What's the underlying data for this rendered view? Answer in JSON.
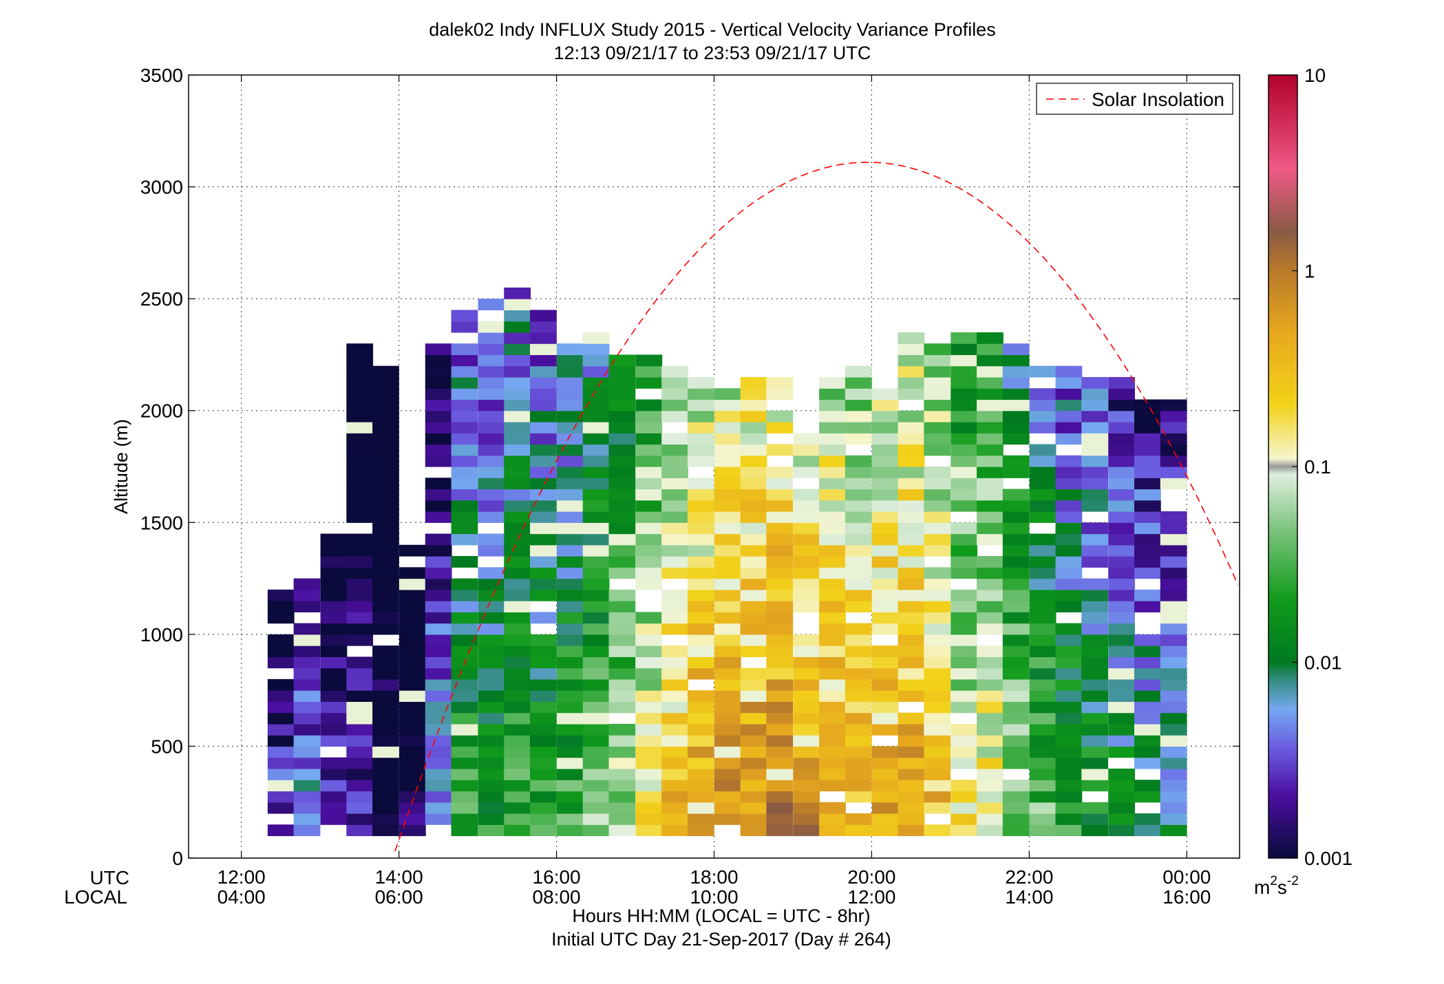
{
  "chart_data": {
    "type": "heatmap",
    "title": "dalek02 Indy INFLUX Study 2015 - Vertical Velocity Variance Profiles",
    "subtitle": "12:13 09/21/17 to 23:53 09/21/17  UTC",
    "ylabel": "Altitude (m)",
    "xlabel": "Hours HH:MM  (LOCAL = UTC - 8hr)",
    "xlabel2": "Initial UTC Day 21-Sep-2017 (Day # 264)",
    "x_row_labels": [
      "UTC",
      "LOCAL"
    ],
    "xlim": [
      11.33,
      24.67
    ],
    "ylim": [
      0,
      3500
    ],
    "grid": true,
    "yticks": [
      0,
      500,
      1000,
      1500,
      2000,
      2500,
      3000,
      3500
    ],
    "xticks": [
      12,
      14,
      16,
      18,
      20,
      22,
      24
    ],
    "xtick_labels_utc": [
      "12:00",
      "14:00",
      "16:00",
      "18:00",
      "20:00",
      "22:00",
      "00:00"
    ],
    "xtick_labels_local": [
      "04:00",
      "06:00",
      "08:00",
      "10:00",
      "12:00",
      "14:00",
      "16:00"
    ],
    "colorbar": {
      "scale": "log",
      "range": [
        0.001,
        10
      ],
      "ticks": [
        "0.001",
        "0.01",
        "0.1",
        "1",
        "10"
      ],
      "unit_base": "m",
      "unit_sup1": "2",
      "unit_mid": "s",
      "unit_sup2": "-2"
    },
    "cell": {
      "dt_hours": 0.3333,
      "dz_m": 50,
      "z_start_m": 100
    },
    "columns": [
      {
        "t": 12.5,
        "top": 1200,
        "level": -2.4
      },
      {
        "t": 12.83,
        "top": 1250,
        "level": -2.1
      },
      {
        "t": 13.17,
        "top": 1450,
        "level": -2.4
      },
      {
        "t": 13.5,
        "top": 2300,
        "level": -2.6
      },
      {
        "t": 13.83,
        "top": 2200,
        "level": -2.8
      },
      {
        "t": 14.17,
        "top": 1400,
        "level": -3.0
      },
      {
        "t": 14.5,
        "top": 2300,
        "level": -2.2
      },
      {
        "t": 14.83,
        "top": 2450,
        "level": -1.6
      },
      {
        "t": 15.17,
        "top": 2500,
        "level": -1.7
      },
      {
        "t": 15.5,
        "top": 2550,
        "level": -1.5
      },
      {
        "t": 15.83,
        "top": 2500,
        "level": -1.6
      },
      {
        "t": 16.17,
        "top": 2300,
        "level": -1.5
      },
      {
        "t": 16.5,
        "top": 2350,
        "level": -1.3
      },
      {
        "t": 16.83,
        "top": 2250,
        "level": -1.1
      },
      {
        "t": 17.17,
        "top": 2300,
        "level": -0.8
      },
      {
        "t": 17.5,
        "top": 2200,
        "level": -0.5
      },
      {
        "t": 17.83,
        "top": 2150,
        "level": -0.3
      },
      {
        "t": 18.17,
        "top": 2100,
        "level": -0.2
      },
      {
        "t": 18.5,
        "top": 2150,
        "level": -0.15
      },
      {
        "t": 18.83,
        "top": 2150,
        "level": -0.1
      },
      {
        "t": 19.17,
        "top": 1900,
        "level": -0.15
      },
      {
        "t": 19.5,
        "top": 2150,
        "level": -0.3
      },
      {
        "t": 19.83,
        "top": 2200,
        "level": -0.4
      },
      {
        "t": 20.17,
        "top": 2100,
        "level": -0.3
      },
      {
        "t": 20.5,
        "top": 2350,
        "level": -0.3
      },
      {
        "t": 20.83,
        "top": 2350,
        "level": -0.5
      },
      {
        "t": 21.17,
        "top": 2350,
        "level": -0.9
      },
      {
        "t": 21.5,
        "top": 2350,
        "level": -0.8
      },
      {
        "t": 21.83,
        "top": 2300,
        "level": -1.2
      },
      {
        "t": 22.17,
        "top": 2200,
        "level": -1.4
      },
      {
        "t": 22.5,
        "top": 2200,
        "level": -1.6
      },
      {
        "t": 22.83,
        "top": 2150,
        "level": -1.7
      },
      {
        "t": 23.17,
        "top": 2150,
        "level": -1.8
      },
      {
        "t": 23.5,
        "top": 2050,
        "level": -1.9
      },
      {
        "t": 23.83,
        "top": 2050,
        "level": -2.0
      }
    ],
    "series": [
      {
        "name": "Solar Insolation",
        "style": "dashed",
        "color": "#ff0000",
        "curve": [
          {
            "x": 13.95,
            "y": 30
          },
          {
            "x": 19.95,
            "y": 3110
          },
          {
            "x": 24.67,
            "y": 1050
          }
        ]
      }
    ]
  }
}
